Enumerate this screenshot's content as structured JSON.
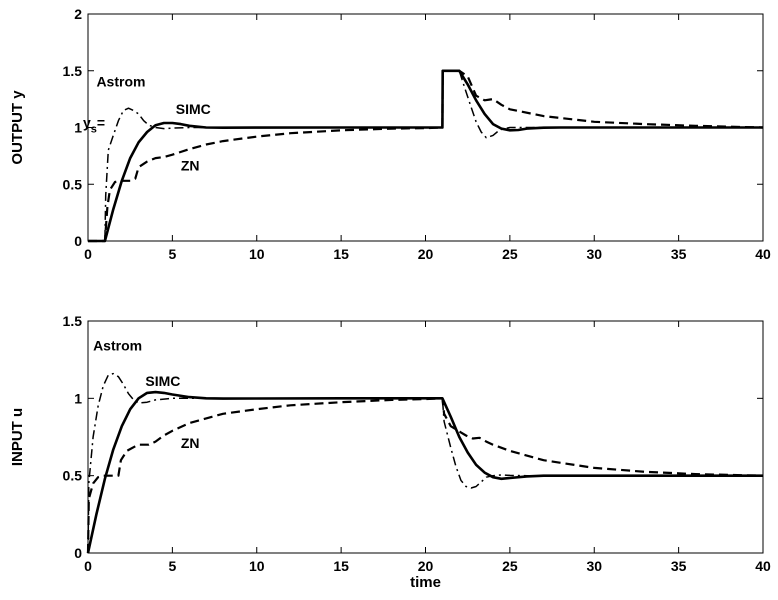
{
  "chart_data": [
    {
      "type": "line",
      "ylabel": "OUTPUT y",
      "xlabel": "",
      "xlim": [
        0,
        40
      ],
      "ylim": [
        0,
        2
      ],
      "xticks": [
        0,
        5,
        10,
        15,
        20,
        25,
        30,
        35,
        40
      ],
      "yticks": [
        0,
        0.5,
        1,
        1.5,
        2
      ],
      "annotations": [
        {
          "text": "Astrom",
          "x": 0.5,
          "y": 1.36
        },
        {
          "text": "SIMC",
          "x": 5.2,
          "y": 1.12
        },
        {
          "text": "ZN",
          "x": 5.5,
          "y": 0.62
        },
        {
          "text": "y",
          "sub": "s",
          "suffix": "=",
          "x": -0.3,
          "y": 1.0
        }
      ],
      "series": [
        {
          "style": "solid",
          "x": [
            0,
            1,
            1.5,
            2,
            2.5,
            3,
            3.5,
            4,
            4.5,
            5,
            5.5,
            6,
            7,
            8,
            10,
            15,
            20,
            21,
            21.02,
            22,
            22.5,
            23,
            23.5,
            24,
            24.5,
            25,
            25.5,
            26,
            27,
            28,
            30,
            40
          ],
          "y": [
            0,
            0,
            0.28,
            0.53,
            0.73,
            0.87,
            0.96,
            1.02,
            1.04,
            1.04,
            1.03,
            1.015,
            1.0,
            0.998,
            0.999,
            1.0,
            1.0,
            1.0,
            1.5,
            1.5,
            1.38,
            1.24,
            1.12,
            1.03,
            0.99,
            0.975,
            0.978,
            0.99,
            0.998,
            1.0,
            1.0,
            1.0
          ]
        },
        {
          "style": "dashed",
          "x": [
            0,
            1,
            1.15,
            1.3,
            1.6,
            1.9,
            2.2,
            2.5,
            2.8,
            3.0,
            3.5,
            4.0,
            4.5,
            5,
            6,
            7,
            8,
            10,
            12,
            15,
            18,
            20,
            21,
            21.02,
            22,
            22.5,
            23,
            23.5,
            24,
            24.5,
            25,
            27,
            30,
            33,
            36,
            40
          ],
          "y": [
            0,
            0,
            0.3,
            0.45,
            0.52,
            0.53,
            0.53,
            0.53,
            0.55,
            0.65,
            0.7,
            0.73,
            0.74,
            0.76,
            0.81,
            0.85,
            0.88,
            0.92,
            0.95,
            0.975,
            0.99,
            0.995,
            1.0,
            1.5,
            1.5,
            1.45,
            1.28,
            1.24,
            1.25,
            1.2,
            1.16,
            1.1,
            1.05,
            1.03,
            1.015,
            1.0
          ]
        },
        {
          "style": "dashdot",
          "x": [
            0,
            1,
            1.05,
            1.2,
            1.5,
            1.8,
            2.1,
            2.4,
            2.7,
            3.0,
            3.3,
            3.6,
            4,
            4.5,
            5,
            6,
            8,
            10,
            15,
            20,
            21,
            21.02,
            22,
            22.3,
            22.7,
            23,
            23.3,
            23.6,
            24,
            24.4,
            25,
            26,
            28,
            30,
            40
          ],
          "y": [
            0,
            0,
            0.4,
            0.8,
            0.93,
            1.06,
            1.15,
            1.17,
            1.15,
            1.12,
            1.06,
            1.02,
            1.0,
            0.99,
            0.995,
            1.0,
            1.0,
            1.0,
            1.0,
            1.0,
            1.0,
            1.5,
            1.5,
            1.36,
            1.18,
            1.05,
            0.96,
            0.91,
            0.93,
            0.98,
            1.0,
            1.0,
            1.0,
            1.0,
            1.0
          ]
        }
      ]
    },
    {
      "type": "line",
      "ylabel": "INPUT u",
      "xlabel": "time",
      "xlim": [
        0,
        40
      ],
      "ylim": [
        0,
        1.5
      ],
      "xticks": [
        0,
        5,
        10,
        15,
        20,
        25,
        30,
        35,
        40
      ],
      "yticks": [
        0,
        0.5,
        1,
        1.5
      ],
      "annotations": [
        {
          "text": "Astrom",
          "x": 0.3,
          "y": 1.31
        },
        {
          "text": "SIMC",
          "x": 3.4,
          "y": 1.08
        },
        {
          "text": "ZN",
          "x": 5.5,
          "y": 0.68
        }
      ],
      "series": [
        {
          "style": "solid",
          "x": [
            0,
            0.5,
            1,
            1.5,
            2,
            2.5,
            3,
            3.5,
            4,
            4.5,
            5,
            6,
            7,
            8,
            10,
            15,
            20,
            21,
            21.5,
            22,
            22.5,
            23,
            23.5,
            24,
            24.5,
            25,
            26,
            27,
            30,
            40
          ],
          "y": [
            0,
            0.25,
            0.48,
            0.67,
            0.82,
            0.93,
            1.0,
            1.035,
            1.04,
            1.035,
            1.025,
            1.008,
            1.0,
            0.998,
            0.999,
            1.0,
            1.0,
            1.0,
            0.88,
            0.75,
            0.65,
            0.57,
            0.52,
            0.49,
            0.48,
            0.485,
            0.495,
            0.5,
            0.5,
            0.5
          ]
        },
        {
          "style": "dashed",
          "x": [
            0,
            0.05,
            0.3,
            0.6,
            0.9,
            1.2,
            1.5,
            1.8,
            1.95,
            2.3,
            2.8,
            3.0,
            3.6,
            4.0,
            4.5,
            5,
            6,
            7,
            8,
            10,
            12,
            15,
            18,
            20,
            21,
            21.1,
            21.5,
            21.8,
            22.1,
            22.4,
            22.8,
            23.2,
            23.6,
            24,
            25,
            27,
            30,
            33,
            36,
            40
          ],
          "y": [
            0,
            0.35,
            0.45,
            0.49,
            0.5,
            0.5,
            0.5,
            0.5,
            0.6,
            0.66,
            0.69,
            0.7,
            0.7,
            0.72,
            0.76,
            0.79,
            0.84,
            0.87,
            0.9,
            0.93,
            0.955,
            0.975,
            0.99,
            0.995,
            1.0,
            0.9,
            0.82,
            0.8,
            0.78,
            0.76,
            0.74,
            0.745,
            0.72,
            0.7,
            0.66,
            0.6,
            0.55,
            0.525,
            0.51,
            0.5
          ]
        },
        {
          "style": "dashdot",
          "x": [
            0,
            0.05,
            0.3,
            0.6,
            0.9,
            1.2,
            1.5,
            1.8,
            2.1,
            2.4,
            2.7,
            3.0,
            3.5,
            4,
            5,
            6,
            8,
            10,
            15,
            20,
            21,
            21.1,
            21.5,
            21.8,
            22.1,
            22.4,
            22.7,
            23.0,
            23.3,
            23.6,
            24,
            24.5,
            25,
            26,
            28,
            30,
            40
          ],
          "y": [
            0,
            0.45,
            0.75,
            0.95,
            1.08,
            1.15,
            1.16,
            1.14,
            1.09,
            1.03,
            0.99,
            0.97,
            0.975,
            0.99,
            1.0,
            1.0,
            1.0,
            1.0,
            1.0,
            1.0,
            1.0,
            0.85,
            0.68,
            0.56,
            0.47,
            0.43,
            0.42,
            0.43,
            0.46,
            0.49,
            0.5,
            0.505,
            0.502,
            0.5,
            0.5,
            0.5,
            0.5
          ]
        }
      ]
    }
  ]
}
